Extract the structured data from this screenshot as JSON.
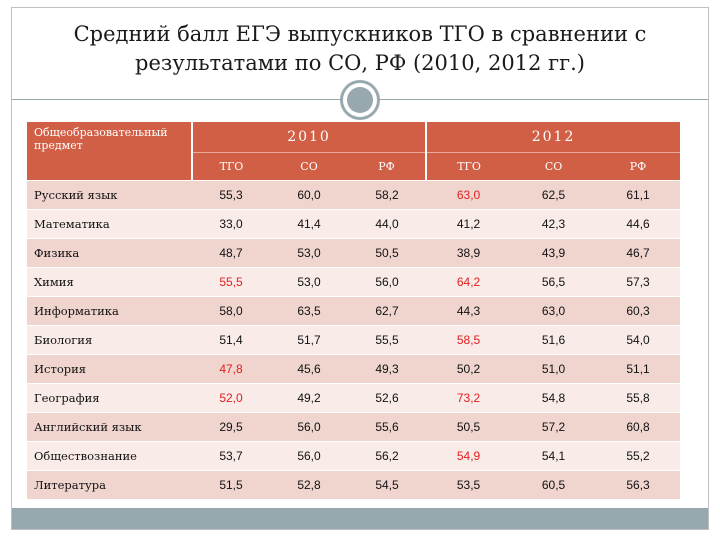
{
  "title": "Средний балл ЕГЭ выпускников ТГО в сравнении с результатами по СО, РФ (2010, 2012 гг.)",
  "table": {
    "subject_header": "Общеобразовательный предмет",
    "years": [
      "2010",
      "2012"
    ],
    "subheaders": [
      "ТГО",
      "СО",
      "РФ",
      "ТГО",
      "СО",
      "РФ"
    ],
    "highlight_color": "#e02020",
    "rows": [
      {
        "subject": "Русский язык",
        "values": [
          "55,3",
          "60,0",
          "58,2",
          "63,0",
          "62,5",
          "61,1"
        ],
        "highlight": [
          3
        ]
      },
      {
        "subject": "Математика",
        "values": [
          "33,0",
          "41,4",
          "44,0",
          "41,2",
          "42,3",
          "44,6"
        ],
        "highlight": []
      },
      {
        "subject": "Физика",
        "values": [
          "48,7",
          "53,0",
          "50,5",
          "38,9",
          "43,9",
          "46,7"
        ],
        "highlight": []
      },
      {
        "subject": "Химия",
        "values": [
          "55,5",
          "53,0",
          "56,0",
          "64,2",
          "56,5",
          "57,3"
        ],
        "highlight": [
          0,
          3
        ]
      },
      {
        "subject": "Информатика",
        "values": [
          "58,0",
          "63,5",
          "62,7",
          "44,3",
          "63,0",
          "60,3"
        ],
        "highlight": []
      },
      {
        "subject": "Биология",
        "values": [
          "51,4",
          "51,7",
          "55,5",
          "58,5",
          "51,6",
          "54,0"
        ],
        "highlight": [
          3
        ]
      },
      {
        "subject": "История",
        "values": [
          "47,8",
          "45,6",
          "49,3",
          "50,2",
          "51,0",
          "51,1"
        ],
        "highlight": [
          0
        ]
      },
      {
        "subject": "География",
        "values": [
          "52,0",
          "49,2",
          "52,6",
          "73,2",
          "54,8",
          "55,8"
        ],
        "highlight": [
          0,
          3
        ]
      },
      {
        "subject": "Английский язык",
        "values": [
          "29,5",
          "56,0",
          "55,6",
          "50,5",
          "57,2",
          "60,8"
        ],
        "highlight": []
      },
      {
        "subject": "Обществознание",
        "values": [
          "53,7",
          "56,0",
          "56,2",
          "54,9",
          "54,1",
          "55,2"
        ],
        "highlight": [
          3
        ]
      },
      {
        "subject": "Литература",
        "values": [
          "51,5",
          "52,8",
          "54,5",
          "53,5",
          "60,5",
          "56,3"
        ],
        "highlight": []
      }
    ]
  }
}
